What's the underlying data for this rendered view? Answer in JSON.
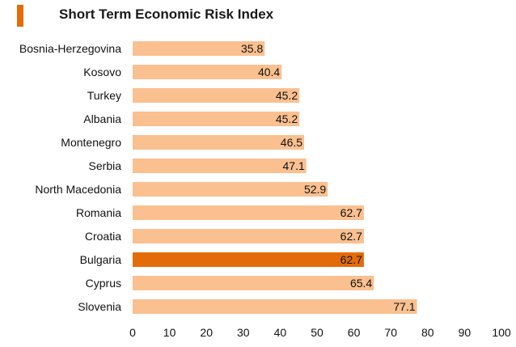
{
  "chart_data": {
    "type": "bar",
    "orientation": "horizontal",
    "title": "Short Term Economic Risk Index",
    "categories": [
      "Bosnia-Herzegovina",
      "Kosovo",
      "Turkey",
      "Albania",
      "Montenegro",
      "Serbia",
      "North Macedonia",
      "Romania",
      "Croatia",
      "Bulgaria",
      "Cyprus",
      "Slovenia"
    ],
    "values": [
      35.8,
      40.4,
      45.2,
      45.2,
      46.5,
      47.1,
      52.9,
      62.7,
      62.7,
      62.7,
      65.4,
      77.1
    ],
    "highlight": "Bulgaria",
    "xlim": [
      0,
      100
    ],
    "xticks": [
      0,
      10,
      20,
      30,
      40,
      50,
      60,
      70,
      80,
      90,
      100
    ],
    "grid": false,
    "legend": "none",
    "colors": {
      "bar": "#fac090",
      "highlight": "#e36c09",
      "accent": "#e36c09"
    }
  }
}
